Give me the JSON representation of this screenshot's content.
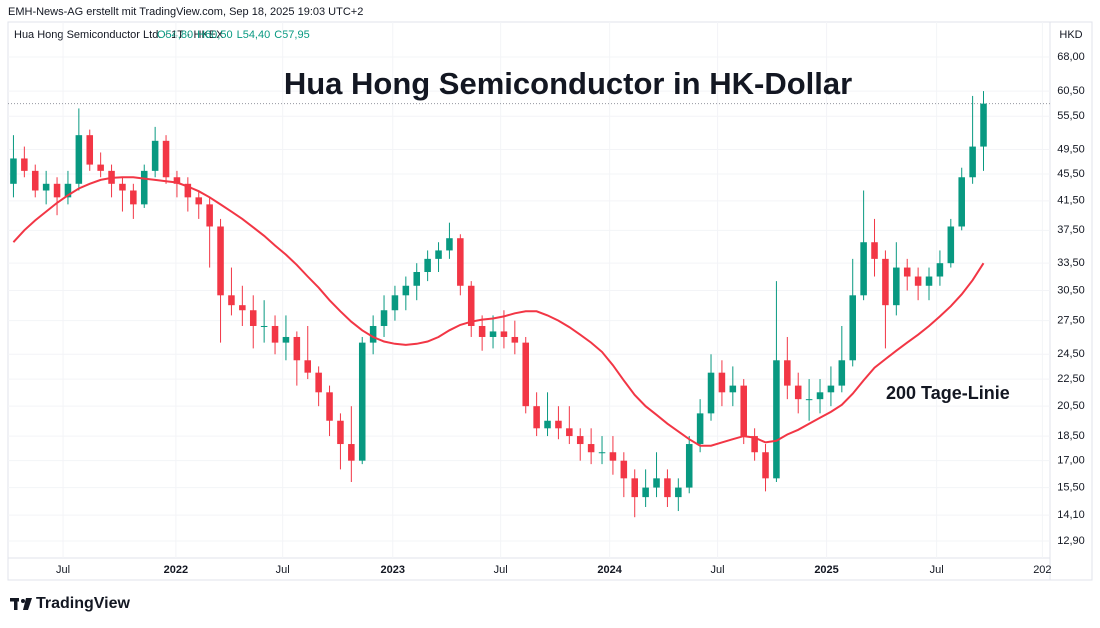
{
  "header": {
    "credit": "EMH-News-AG erstellt mit TradingView.com, Sep 18, 2025 19:03 UTC+2",
    "logo": "TradingView"
  },
  "chart_data": {
    "type": "candlestick",
    "title": "Hua Hong Semiconductor in HK-Dollar",
    "symbol": "Hua Hong Semiconductor Ltd. · 1T · HKEX",
    "quote": [
      "O54,80",
      "H60,50",
      "L54,40",
      "C57,95"
    ],
    "currency": "HKD",
    "annotation": "200 Tage-Linie",
    "log_scale": true,
    "grid": true,
    "up_color": "#089981",
    "down_color": "#f23645",
    "open": [
      44,
      48,
      46,
      43,
      44,
      42,
      44,
      52,
      47,
      46,
      44,
      43,
      41,
      46,
      51,
      45,
      44,
      42,
      41,
      38,
      30,
      29,
      28.5,
      27,
      27,
      25.5,
      26,
      24,
      23,
      21.5,
      19.5,
      18,
      17,
      25.5,
      27,
      28.5,
      30,
      31,
      32.5,
      34,
      35,
      36.5,
      31,
      27,
      26,
      26.5,
      26,
      25.5,
      20.5,
      19,
      19.5,
      19,
      18.5,
      18,
      17.5,
      17.5,
      17,
      16,
      15,
      15.5,
      16,
      15,
      15.5,
      18,
      20,
      23,
      21.5,
      22,
      18.5,
      17.5,
      16,
      24,
      22,
      21,
      21,
      21.5,
      22,
      24,
      30,
      36,
      34,
      29,
      33,
      32,
      31,
      32,
      33.5,
      38,
      45,
      50
    ],
    "high": [
      52,
      50,
      47,
      46,
      45,
      46,
      57,
      53,
      49,
      47,
      45,
      44,
      47,
      53.5,
      52,
      46,
      45,
      43,
      42,
      39,
      33,
      31,
      30,
      29.5,
      28,
      28,
      26.5,
      27,
      23.5,
      22,
      20,
      20.5,
      26,
      28,
      30,
      31,
      32,
      33.5,
      35,
      36,
      38.5,
      37,
      31.5,
      28,
      28,
      28.5,
      27.5,
      26,
      21.5,
      21.5,
      20.5,
      20.5,
      19,
      19,
      18.5,
      18.5,
      17.5,
      16.5,
      16.5,
      17.5,
      16.5,
      16,
      18.5,
      21,
      24.5,
      24,
      23.5,
      22.5,
      19,
      18,
      31.5,
      26,
      23,
      22.5,
      22.5,
      23.5,
      27,
      34,
      43,
      39,
      35,
      36,
      34,
      33,
      33,
      35,
      39,
      46.5,
      59.5,
      60.5
    ],
    "low": [
      42,
      45,
      42,
      41,
      39.5,
      41,
      43,
      46,
      45,
      42,
      40,
      39,
      40.5,
      45,
      44,
      42,
      40,
      39,
      33,
      25.5,
      28,
      27,
      25,
      25.5,
      24.5,
      24,
      22,
      22.5,
      20.5,
      18.5,
      16.5,
      15.8,
      16.8,
      24.5,
      26,
      27.5,
      28.5,
      29.5,
      31.5,
      32.5,
      34,
      30,
      26,
      24.8,
      25,
      25,
      24.5,
      20,
      18.5,
      18.5,
      18.3,
      18,
      17,
      16.8,
      16.8,
      16.2,
      15,
      14,
      14.5,
      15,
      14.5,
      14.3,
      15.2,
      17.5,
      19.5,
      20.5,
      20.5,
      18,
      17,
      15.3,
      15.8,
      21,
      20,
      19.5,
      20,
      20.5,
      21.5,
      23.5,
      29.5,
      32,
      25,
      28,
      30.5,
      29.5,
      29.5,
      31,
      33,
      37.5,
      44,
      46
    ],
    "close": [
      48,
      46,
      43,
      44,
      42,
      44,
      52,
      47,
      46,
      44,
      43,
      41,
      46,
      51,
      45,
      44,
      42,
      41,
      38,
      30,
      29,
      28.5,
      27,
      27,
      25.5,
      26,
      24,
      23,
      21.5,
      19.5,
      18,
      17,
      25.5,
      27,
      28.5,
      30,
      31,
      32.5,
      34,
      35,
      36.5,
      31,
      27,
      26,
      26.5,
      26,
      25.5,
      20.5,
      19,
      19.5,
      19,
      18.5,
      18,
      17.5,
      17.5,
      17,
      16,
      15,
      15.5,
      16,
      15,
      15.5,
      18,
      20,
      23,
      21.5,
      22,
      18.5,
      17.5,
      16,
      24,
      22,
      21,
      21,
      21.5,
      22,
      24,
      30,
      36,
      34,
      29,
      33,
      32,
      31,
      32,
      33.5,
      38,
      45,
      50,
      57.95
    ],
    "series": [
      {
        "name": "200 Tage-Linie",
        "color": "#f23645",
        "values": [
          36,
          37.5,
          38.8,
          40,
          41.2,
          42.3,
          43.3,
          44,
          44.6,
          44.9,
          45,
          45,
          44.8,
          44.6,
          44.4,
          44.2,
          43.6,
          42.9,
          42,
          41,
          40,
          39,
          37.9,
          36.8,
          35.6,
          34.5,
          33.3,
          32,
          30.8,
          29.5,
          28.4,
          27.4,
          26.6,
          26,
          25.6,
          25.4,
          25.3,
          25.4,
          25.6,
          26,
          26.6,
          27.1,
          27.4,
          27.6,
          27.7,
          27.9,
          28.2,
          28.4,
          28.4,
          28,
          27.5,
          26.9,
          26.2,
          25.5,
          24.7,
          23.6,
          22.4,
          21.3,
          20.5,
          19.9,
          19.3,
          18.8,
          18.3,
          17.9,
          17.9,
          18.1,
          18.3,
          18.5,
          18.4,
          18.1,
          18.2,
          18.6,
          18.9,
          19.3,
          19.7,
          20.1,
          20.6,
          21.4,
          22.4,
          23.4,
          24.1,
          24.8,
          25.5,
          26.2,
          27,
          27.9,
          28.9,
          30.1,
          31.6,
          33.5
        ]
      }
    ],
    "xlim": [
      0,
      95.6
    ],
    "xticks": [
      {
        "value": 5.05,
        "label": "Jul"
      },
      {
        "value": 15.4,
        "label": "2022"
      },
      {
        "value": 25.2,
        "label": "Jul"
      },
      {
        "value": 35.3,
        "label": "2023"
      },
      {
        "value": 45.2,
        "label": "Jul"
      },
      {
        "value": 55.2,
        "label": "2024"
      },
      {
        "value": 65.1,
        "label": "Jul"
      },
      {
        "value": 75.1,
        "label": "2025"
      },
      {
        "value": 85.2,
        "label": "Jul"
      },
      {
        "value": 94.9,
        "label": "202"
      }
    ],
    "ylim": [
      12.17,
      76.7
    ],
    "yticks": [
      {
        "value": 12.9,
        "label": "12,90"
      },
      {
        "value": 14.1,
        "label": "14,10"
      },
      {
        "value": 15.5,
        "label": "15,50"
      },
      {
        "value": 17,
        "label": "17,00"
      },
      {
        "value": 18.5,
        "label": "18,50"
      },
      {
        "value": 20.5,
        "label": "20,50"
      },
      {
        "value": 22.5,
        "label": "22,50"
      },
      {
        "value": 24.5,
        "label": "24,50"
      },
      {
        "value": 27.5,
        "label": "27,50"
      },
      {
        "value": 30.5,
        "label": "30,50"
      },
      {
        "value": 33.5,
        "label": "33,50"
      },
      {
        "value": 37.5,
        "label": "37,50"
      },
      {
        "value": 41.5,
        "label": "41,50"
      },
      {
        "value": 45.5,
        "label": "45,50"
      },
      {
        "value": 49.5,
        "label": "49,50"
      },
      {
        "value": 55.5,
        "label": "55,50"
      },
      {
        "value": 60.5,
        "label": "60,50"
      },
      {
        "value": 68,
        "label": "68,00"
      }
    ]
  }
}
